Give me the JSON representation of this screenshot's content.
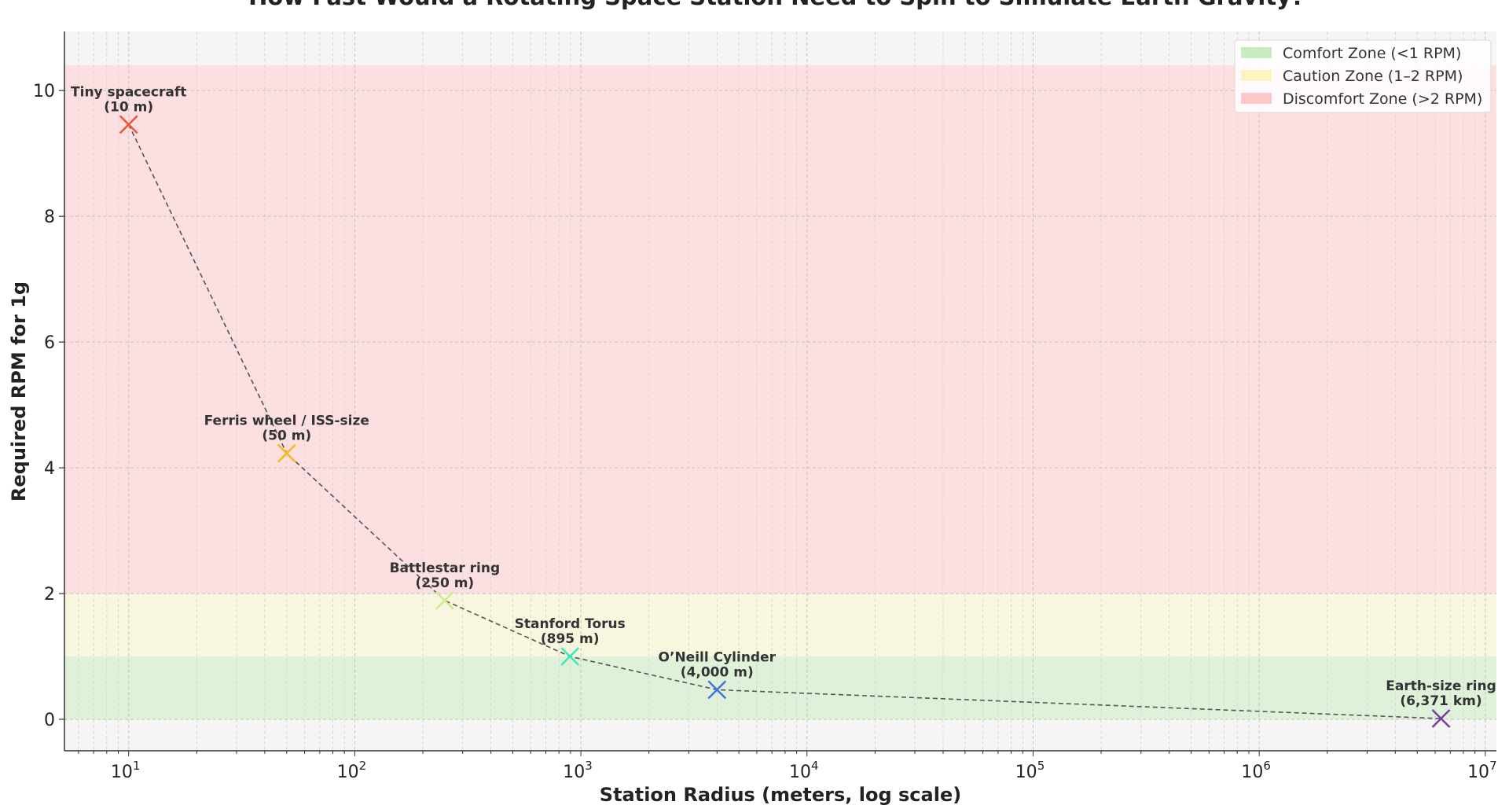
{
  "chart_data": {
    "type": "line",
    "title": "How Fast Would a Rotating Space Station Need to Spin to Simulate Earth Gravity?",
    "xlabel": "Station Radius (meters, log scale)",
    "ylabel": "Required RPM for 1g",
    "xscale": "log",
    "xlim": [
      5.2,
      11200000
    ],
    "ylim": [
      -0.5,
      10.94
    ],
    "grid": true,
    "line_style": "dashed",
    "line_color": "#555555",
    "marker": "x",
    "background_color": "#f5f5f5",
    "x_ticks": [
      {
        "value": 10,
        "base": "10",
        "exp": "1"
      },
      {
        "value": 100,
        "base": "10",
        "exp": "2"
      },
      {
        "value": 1000,
        "base": "10",
        "exp": "3"
      },
      {
        "value": 10000,
        "base": "10",
        "exp": "4"
      },
      {
        "value": 100000,
        "base": "10",
        "exp": "5"
      },
      {
        "value": 1000000,
        "base": "10",
        "exp": "6"
      },
      {
        "value": 10000000,
        "base": "10",
        "exp": "7"
      }
    ],
    "y_ticks": [
      {
        "value": 0,
        "label": "0"
      },
      {
        "value": 2,
        "label": "2"
      },
      {
        "value": 4,
        "label": "4"
      },
      {
        "value": 6,
        "label": "6"
      },
      {
        "value": 8,
        "label": "8"
      },
      {
        "value": 10,
        "label": "10"
      }
    ],
    "zones": [
      {
        "label": "Comfort Zone (<1 RPM)",
        "from": 0,
        "to": 1,
        "color": "#c8ecc0",
        "fill": "#e0f1da"
      },
      {
        "label": "Caution Zone (1–2 RPM)",
        "from": 1,
        "to": 2,
        "color": "#fbf4c0",
        "fill": "#f8f6df"
      },
      {
        "label": "Discomfort Zone (>2 RPM)",
        "from": 2,
        "to": 10.4,
        "color": "#ffc8c8",
        "fill": "#fbdfe1"
      }
    ],
    "legend_position": "top-right",
    "points": [
      {
        "name": "Tiny spacecraft",
        "radius_label": "(10 m)",
        "x": 10,
        "y": 9.46,
        "color": "#ee5533"
      },
      {
        "name": "Ferris wheel / ISS-size",
        "radius_label": "(50 m)",
        "x": 50,
        "y": 4.23,
        "color": "#f5b921"
      },
      {
        "name": "Battlestar ring",
        "radius_label": "(250 m)",
        "x": 250,
        "y": 1.89,
        "color": "#cdeb8b"
      },
      {
        "name": "Stanford Torus",
        "radius_label": "(895 m)",
        "x": 895,
        "y": 1.0,
        "color": "#3ee8b8"
      },
      {
        "name": "O’Neill Cylinder",
        "radius_label": "(4,000 m)",
        "x": 4000,
        "y": 0.47,
        "color": "#3a78e0"
      },
      {
        "name": "Earth-size ring",
        "radius_label": "(6,371 km)",
        "x": 6371000,
        "y": 0.012,
        "color": "#7a3f9e"
      }
    ]
  }
}
